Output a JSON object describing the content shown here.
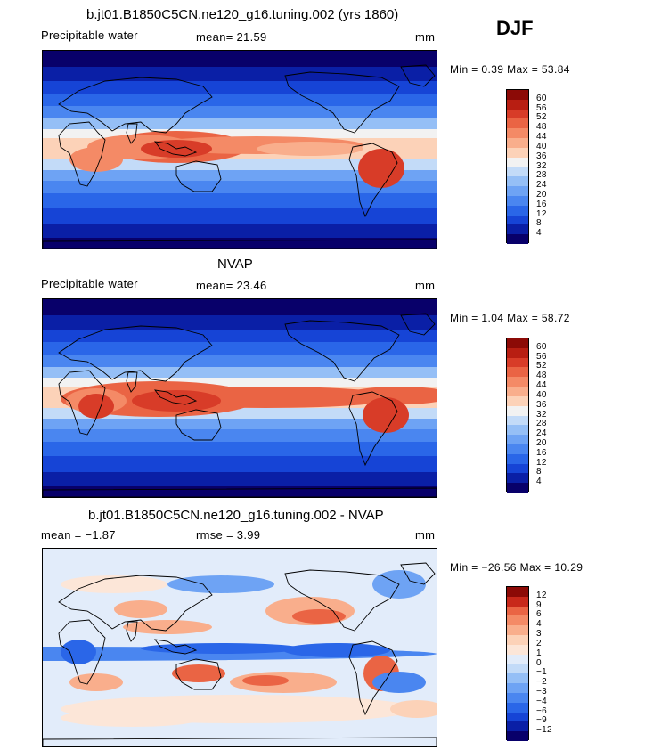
{
  "season": "DJF",
  "panels": [
    {
      "title": "b.jt01.B1850C5CN.ne120_g16.tuning.002 (yrs 1860)",
      "left_label": "Precipitable water",
      "mid_label": "mean=  21.59",
      "units": "mm",
      "minmax": "Min =    0.39  Max =   53.84",
      "colorbar_labels": [
        "60",
        "56",
        "52",
        "48",
        "44",
        "40",
        "36",
        "32",
        "28",
        "24",
        "20",
        "16",
        "12",
        "8",
        "4"
      ]
    },
    {
      "title": "NVAP",
      "left_label": "Precipitable water",
      "mid_label": "mean=  23.46",
      "units": "mm",
      "minmax": "Min =    1.04  Max =   58.72",
      "colorbar_labels": [
        "60",
        "56",
        "52",
        "48",
        "44",
        "40",
        "36",
        "32",
        "28",
        "24",
        "20",
        "16",
        "12",
        "8",
        "4"
      ]
    },
    {
      "title": "b.jt01.B1850C5CN.ne120_g16.tuning.002 - NVAP",
      "left_label": "mean =   −1.87",
      "mid_label": "rmse =     3.99",
      "units": "mm",
      "minmax": "Min =  −26.56  Max =   10.29",
      "colorbar_labels": [
        "12",
        "9",
        "6",
        "4",
        "3",
        "2",
        "1",
        "0",
        "−1",
        "−2",
        "−3",
        "−4",
        "−6",
        "−9",
        "−12"
      ]
    }
  ],
  "colors": {
    "abs_scale": [
      "#08006a",
      "#0a1fa6",
      "#1644d6",
      "#2a66e8",
      "#4a86f0",
      "#6ea3f4",
      "#95bff6",
      "#c3dbf8",
      "#f2f2f2",
      "#fcd2b8",
      "#f9ae8c",
      "#f48a66",
      "#ea6444",
      "#d83c28",
      "#b81e12",
      "#8c0a06"
    ],
    "diff_scale": [
      "#08006a",
      "#0a1fa6",
      "#1644d6",
      "#2a66e8",
      "#4a86f0",
      "#6ea3f4",
      "#95bff6",
      "#c3dbf8",
      "#e2ecfa",
      "#fce6d8",
      "#fcd2b8",
      "#f9ae8c",
      "#f48a66",
      "#ea6444",
      "#c8281a",
      "#8c0a06"
    ],
    "coast": "#000000"
  }
}
